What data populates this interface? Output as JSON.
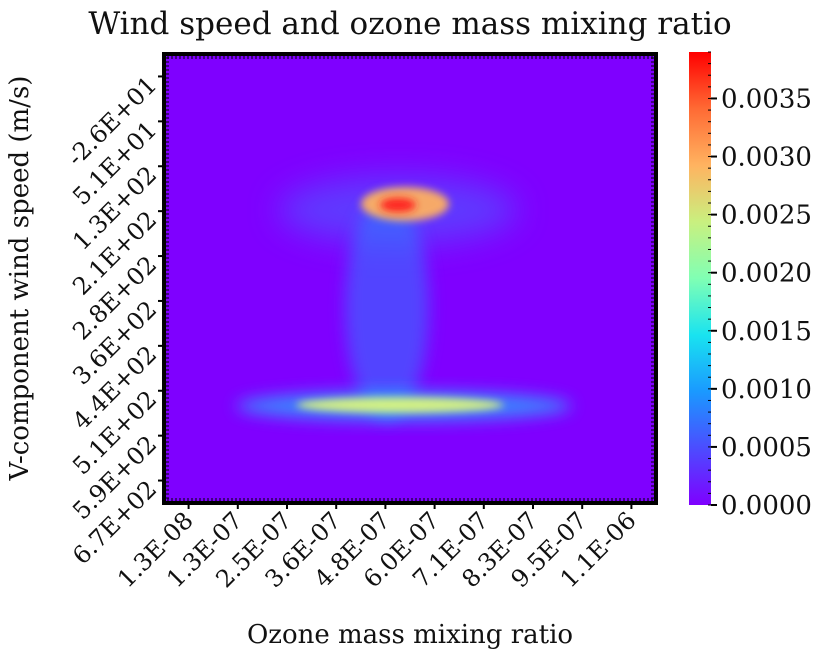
{
  "chart_data": {
    "type": "heatmap",
    "title": "Wind speed and ozone mass mixing ratio",
    "xlabel": "Ozone mass mixing ratio",
    "ylabel": "V-component wind speed (m/s)",
    "x_tick_labels": [
      "1.3E-08",
      "1.3E-07",
      "2.5E-07",
      "3.6E-07",
      "4.8E-07",
      "6.0E-07",
      "7.1E-07",
      "8.3E-07",
      "9.5E-07",
      "1.1E-06"
    ],
    "y_tick_labels": [
      "-2.6E+01",
      "5.1E+01",
      "1.3E+02",
      "2.1E+02",
      "2.8E+02",
      "3.6E+02",
      "4.4E+02",
      "5.1E+02",
      "5.9E+02",
      "6.7E+02"
    ],
    "colorbar": {
      "colormap": "rainbow",
      "range": [
        0,
        0.0039
      ],
      "tick_labels": [
        "0.0000",
        "0.0005",
        "0.0010",
        "0.0015",
        "0.0020",
        "0.0025",
        "0.0030",
        "0.0035"
      ]
    },
    "density_features": [
      {
        "feature": "upper-core",
        "x_center": "6.0E-07",
        "y_center": "1.3E+02",
        "peak_value": 0.0039
      },
      {
        "feature": "stem",
        "x_center": "5.0E-07",
        "y_range": [
          "1.3E+02",
          "5.1E+02"
        ],
        "peak_value": 0.0012
      },
      {
        "feature": "lower-band",
        "x_range": [
          "2.5E-07",
          "8.3E-07"
        ],
        "y_center": "5.1E+02",
        "peak_value": 0.0024
      }
    ],
    "colors": {
      "background": "#7f00ff",
      "peak": "#ff0000"
    }
  }
}
